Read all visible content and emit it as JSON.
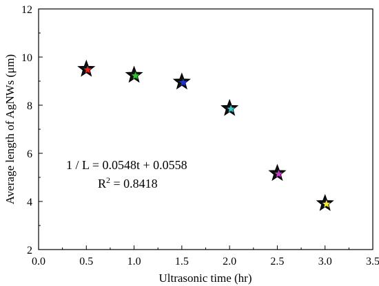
{
  "chart_data": {
    "type": "scatter",
    "xlabel": "Ultrasonic time (hr)",
    "ylabel": "Average length of AgNWs (μm)",
    "xlim": [
      0.0,
      3.5
    ],
    "ylim": [
      2,
      12
    ],
    "x_ticks": [
      "0.0",
      "0.5",
      "1.0",
      "1.5",
      "2.0",
      "2.5",
      "3.0",
      "3.5"
    ],
    "y_ticks": [
      "2",
      "4",
      "6",
      "8",
      "10",
      "12"
    ],
    "grid": false,
    "marker": "star",
    "points": [
      {
        "x": 0.5,
        "y": 9.5,
        "color": "#e8231f"
      },
      {
        "x": 1.0,
        "y": 9.25,
        "color": "#2ec22e"
      },
      {
        "x": 1.5,
        "y": 8.97,
        "color": "#2233cc"
      },
      {
        "x": 2.0,
        "y": 7.87,
        "color": "#35c9c9"
      },
      {
        "x": 2.5,
        "y": 5.17,
        "color": "#c936c9"
      },
      {
        "x": 3.0,
        "y": 3.92,
        "color": "#f2ec2a"
      }
    ],
    "annotations": {
      "equation": "1 / L = 0.0548t + 0.0558",
      "r2_symbol": "R",
      "r2_exponent": "2",
      "r2_value": " = 0.8418"
    }
  }
}
